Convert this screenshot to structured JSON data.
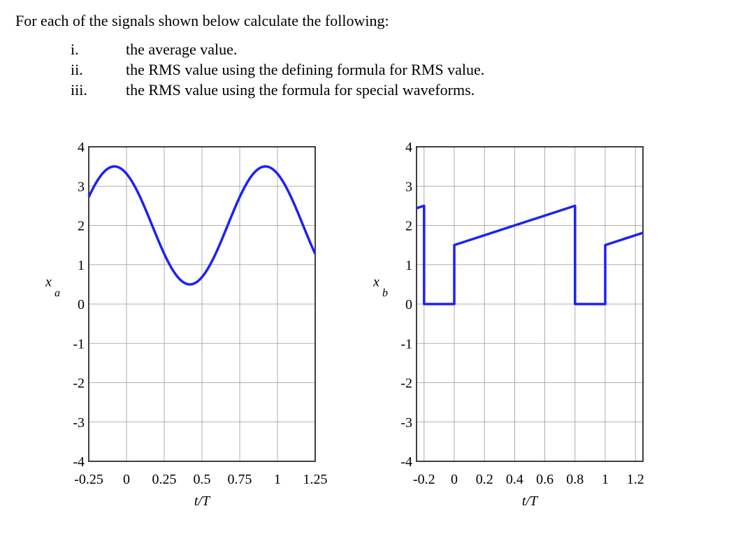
{
  "question": {
    "intro": "For each of the signals shown below calculate the following:",
    "items": [
      {
        "num": "i.",
        "text": "the average value."
      },
      {
        "num": "ii.",
        "text": "the RMS value using the defining formula for RMS value."
      },
      {
        "num": "iii.",
        "text": "the RMS value using the formula for special waveforms."
      }
    ]
  },
  "line_color": "#1a22f5",
  "chart_data": [
    {
      "type": "line",
      "ylabel": "x",
      "ylabel_sub": "a",
      "xlabel": "t/T",
      "xlim": [
        -0.25,
        1.25
      ],
      "ylim": [
        -4,
        4
      ],
      "grid": true,
      "xticks": [
        -0.25,
        0,
        0.25,
        0.5,
        0.75,
        1,
        1.25
      ],
      "xtick_labels": [
        "-0.25",
        "0",
        "0.25",
        "0.5",
        "0.75",
        "1",
        "1.25"
      ],
      "yticks": [
        4,
        3,
        2,
        1,
        0,
        -1,
        -2,
        -3,
        -4
      ],
      "ytick_labels": [
        "4",
        "3",
        "2",
        "1",
        "0",
        "-1",
        "-2",
        "-3",
        "-4"
      ],
      "series": [
        {
          "kind": "sinusoid",
          "offset": 2,
          "amplitude": 1.5,
          "period": 1,
          "peak_at": -0.08,
          "max": 3.5,
          "min": 0.5
        }
      ]
    },
    {
      "type": "line",
      "ylabel": "x",
      "ylabel_sub": "b",
      "xlabel": "t/T",
      "xlim": [
        -0.25,
        1.25
      ],
      "ylim": [
        -4,
        4
      ],
      "grid": true,
      "xticks": [
        -0.2,
        0,
        0.2,
        0.4,
        0.6,
        0.8,
        1,
        1.2
      ],
      "xtick_labels": [
        "-0.2",
        "0",
        "0.2",
        "0.4",
        "0.6",
        "0.8",
        "1",
        "1.2"
      ],
      "yticks": [
        4,
        3,
        2,
        1,
        0,
        -1,
        -2,
        -3,
        -4
      ],
      "ytick_labels": [
        "4",
        "3",
        "2",
        "1",
        "0",
        "-1",
        "-2",
        "-3",
        "-4"
      ],
      "series": [
        {
          "kind": "piecewise",
          "x": [
            -0.25,
            -0.2,
            -0.2,
            0,
            0,
            0.8,
            0.8,
            1,
            1,
            1.25
          ],
          "y": [
            2.4375,
            2.5,
            0,
            0,
            1.5,
            2.5,
            0,
            0,
            1.5,
            1.8125
          ]
        }
      ]
    }
  ]
}
